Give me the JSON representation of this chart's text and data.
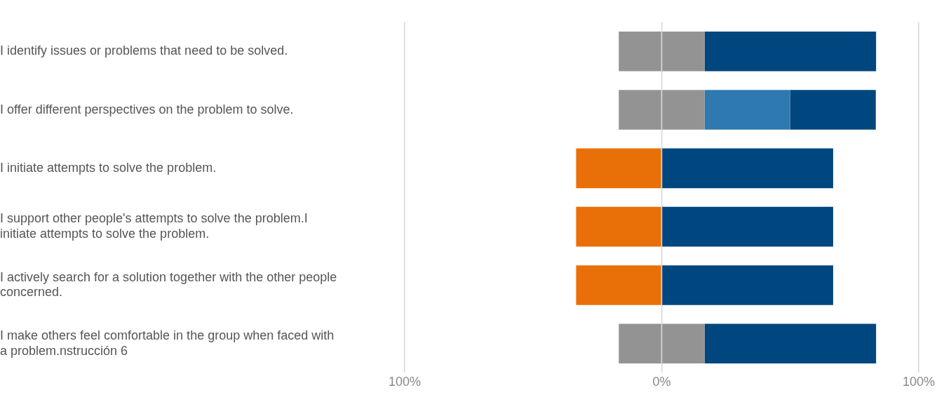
{
  "chart_data": {
    "type": "bar",
    "orientation": "horizontal",
    "stacked": true,
    "categories": [
      "I identify issues or problems that need to be solved.",
      "I offer different perspectives on the problem to solve.",
      "I initiate attempts to solve the problem.",
      "I support other people's attempts to solve the problem.I initiate attempts to solve the problem.",
      "I actively search for a solution together with the other people concerned.",
      "I make others feel comfortable in the group when faced with a problem.nstrucción 6"
    ],
    "series": [
      {
        "color": "#e97008",
        "values": [
          null,
          null,
          -33.3,
          -33.3,
          -33.3,
          null
        ]
      },
      {
        "color": "#939393",
        "values": [
          -16.7,
          -16.7,
          null,
          null,
          null,
          -16.7
        ]
      },
      {
        "color": "#939393",
        "values": [
          16.7,
          16.7,
          null,
          null,
          null,
          16.7
        ]
      },
      {
        "color": "#2e79b0",
        "values": [
          null,
          33.3,
          null,
          null,
          null,
          null
        ]
      },
      {
        "color": "#00467f",
        "values": [
          66.7,
          33.3,
          66.7,
          66.7,
          66.7,
          66.7
        ]
      }
    ],
    "xlim": [
      -100,
      100
    ],
    "xticks": [
      {
        "value": -100,
        "label": "100%"
      },
      {
        "value": 0,
        "label": "0%"
      },
      {
        "value": 100,
        "label": "100%"
      }
    ],
    "grid": "x"
  }
}
